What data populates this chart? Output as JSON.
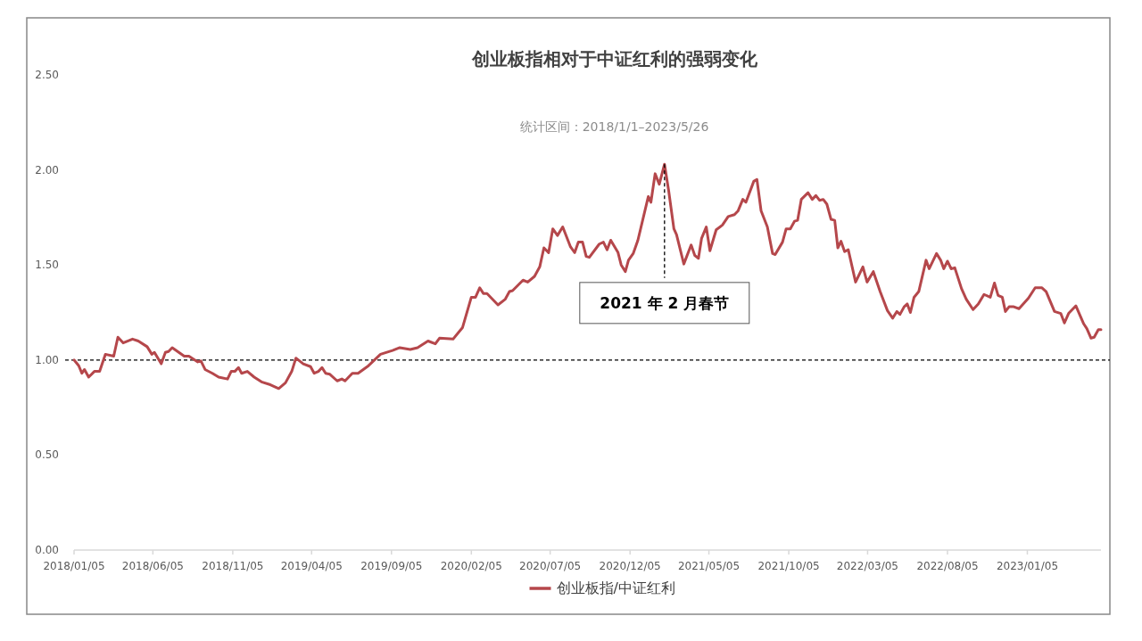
{
  "chart_data": {
    "type": "line",
    "title": "创业板指相对于中证红利的强弱变化",
    "subtitle": "统计区间：2018/1/1–2023/5/26",
    "x": [
      "2018-01-05",
      "2018-01-14",
      "2018-01-20",
      "2018-01-25",
      "2018-02-02",
      "2018-02-13",
      "2018-02-23",
      "2018-03-06",
      "2018-03-22",
      "2018-03-30",
      "2018-04-09",
      "2018-04-27",
      "2018-05-08",
      "2018-05-25",
      "2018-06-03",
      "2018-06-08",
      "2018-06-21",
      "2018-06-29",
      "2018-07-05",
      "2018-07-12",
      "2018-08-04",
      "2018-08-13",
      "2018-08-30",
      "2018-09-05",
      "2018-09-13",
      "2018-09-27",
      "2018-10-09",
      "2018-10-26",
      "2018-11-02",
      "2018-11-09",
      "2018-11-16",
      "2018-11-22",
      "2018-12-03",
      "2018-12-16",
      "2018-12-30",
      "2019-01-16",
      "2019-02-01",
      "2019-02-14",
      "2019-02-26",
      "2019-03-06",
      "2019-03-20",
      "2019-04-03",
      "2019-04-10",
      "2019-04-18",
      "2019-04-25",
      "2019-05-02",
      "2019-05-10",
      "2019-05-24",
      "2019-06-02",
      "2019-06-08",
      "2019-06-22",
      "2019-07-03",
      "2019-07-23",
      "2019-08-15",
      "2019-09-07",
      "2019-09-21",
      "2019-10-11",
      "2019-10-25",
      "2019-11-14",
      "2019-11-28",
      "2019-12-06",
      "2020-01-01",
      "2020-01-19",
      "2020-02-05",
      "2020-02-13",
      "2020-02-21",
      "2020-02-28",
      "2020-03-06",
      "2020-03-27",
      "2020-04-10",
      "2020-04-18",
      "2020-04-24",
      "2020-05-14",
      "2020-05-23",
      "2020-06-05",
      "2020-06-15",
      "2020-06-23",
      "2020-07-02",
      "2020-07-10",
      "2020-07-19",
      "2020-07-29",
      "2020-08-13",
      "2020-08-21",
      "2020-08-28",
      "2020-09-05",
      "2020-09-12",
      "2020-09-18",
      "2020-10-07",
      "2020-10-15",
      "2020-10-22",
      "2020-10-29",
      "2020-11-12",
      "2020-11-18",
      "2020-11-26",
      "2020-12-02",
      "2020-12-11",
      "2020-12-20",
      "2021-01-09",
      "2021-01-14",
      "2021-01-22",
      "2021-01-30",
      "2021-02-09",
      "2021-02-17",
      "2021-02-27",
      "2021-03-04",
      "2021-03-18",
      "2021-04-01",
      "2021-04-08",
      "2021-04-15",
      "2021-04-21",
      "2021-04-30",
      "2021-05-07",
      "2021-05-19",
      "2021-05-31",
      "2021-06-11",
      "2021-06-23",
      "2021-06-30",
      "2021-07-09",
      "2021-07-15",
      "2021-07-30",
      "2021-08-05",
      "2021-08-13",
      "2021-08-25",
      "2021-09-04",
      "2021-09-09",
      "2021-09-23",
      "2021-09-30",
      "2021-10-08",
      "2021-10-16",
      "2021-10-22",
      "2021-10-29",
      "2021-11-11",
      "2021-11-19",
      "2021-11-26",
      "2021-12-03",
      "2021-12-10",
      "2021-12-17",
      "2021-12-25",
      "2022-01-01",
      "2022-01-07",
      "2022-01-13",
      "2022-01-20",
      "2022-01-27",
      "2022-02-10",
      "2022-02-24",
      "2022-03-04",
      "2022-03-16",
      "2022-03-29",
      "2022-04-12",
      "2022-04-22",
      "2022-04-30",
      "2022-05-06",
      "2022-05-14",
      "2022-05-20",
      "2022-05-26",
      "2022-06-02",
      "2022-06-11",
      "2022-06-25",
      "2022-07-01",
      "2022-07-15",
      "2022-07-23",
      "2022-07-29",
      "2022-08-05",
      "2022-08-12",
      "2022-08-19",
      "2022-09-01",
      "2022-09-10",
      "2022-09-23",
      "2022-10-03",
      "2022-10-14",
      "2022-10-26",
      "2022-11-03",
      "2022-11-10",
      "2022-11-18",
      "2022-11-24",
      "2022-12-01",
      "2022-12-10",
      "2022-12-20",
      "2023-01-07",
      "2023-01-20",
      "2023-02-02",
      "2023-02-10",
      "2023-02-26",
      "2023-03-10",
      "2023-03-17",
      "2023-03-25",
      "2023-04-08",
      "2023-04-23",
      "2023-04-29",
      "2023-05-07",
      "2023-05-13",
      "2023-05-21",
      "2023-05-26"
    ],
    "series": [
      {
        "name": "创业板指/中证红利",
        "color": "#b5474b",
        "values": [
          1.0,
          0.97,
          0.93,
          0.95,
          0.91,
          0.94,
          0.94,
          1.03,
          1.02,
          1.12,
          1.09,
          1.11,
          1.1,
          1.07,
          1.03,
          1.04,
          0.98,
          1.04,
          1.045,
          1.065,
          1.02,
          1.02,
          0.99,
          0.995,
          0.95,
          0.93,
          0.91,
          0.9,
          0.94,
          0.94,
          0.96,
          0.93,
          0.94,
          0.91,
          0.885,
          0.87,
          0.85,
          0.88,
          0.94,
          1.01,
          0.98,
          0.965,
          0.93,
          0.94,
          0.96,
          0.93,
          0.925,
          0.89,
          0.9,
          0.89,
          0.93,
          0.93,
          0.97,
          1.03,
          1.05,
          1.065,
          1.055,
          1.065,
          1.1,
          1.085,
          1.115,
          1.11,
          1.17,
          1.33,
          1.33,
          1.38,
          1.35,
          1.35,
          1.29,
          1.32,
          1.36,
          1.365,
          1.42,
          1.41,
          1.44,
          1.49,
          1.59,
          1.565,
          1.69,
          1.655,
          1.7,
          1.595,
          1.565,
          1.62,
          1.62,
          1.545,
          1.54,
          1.61,
          1.62,
          1.58,
          1.63,
          1.565,
          1.5,
          1.465,
          1.525,
          1.56,
          1.63,
          1.86,
          1.83,
          1.98,
          1.925,
          2.03,
          1.89,
          1.69,
          1.66,
          1.505,
          1.605,
          1.55,
          1.535,
          1.64,
          1.7,
          1.575,
          1.685,
          1.71,
          1.755,
          1.765,
          1.785,
          1.845,
          1.83,
          1.94,
          1.95,
          1.785,
          1.7,
          1.56,
          1.555,
          1.62,
          1.69,
          1.69,
          1.73,
          1.735,
          1.845,
          1.88,
          1.845,
          1.865,
          1.84,
          1.845,
          1.82,
          1.74,
          1.735,
          1.59,
          1.625,
          1.57,
          1.58,
          1.41,
          1.49,
          1.41,
          1.465,
          1.36,
          1.26,
          1.22,
          1.255,
          1.24,
          1.28,
          1.295,
          1.25,
          1.33,
          1.36,
          1.525,
          1.48,
          1.56,
          1.525,
          1.48,
          1.52,
          1.48,
          1.485,
          1.375,
          1.32,
          1.265,
          1.295,
          1.345,
          1.33,
          1.405,
          1.34,
          1.33,
          1.255,
          1.28,
          1.28,
          1.27,
          1.325,
          1.38,
          1.38,
          1.36,
          1.255,
          1.245,
          1.195,
          1.245,
          1.285,
          1.19,
          1.165,
          1.115,
          1.12,
          1.16,
          1.16
        ]
      }
    ],
    "xlim": [
      "2018-01-05",
      "2023-05-26"
    ],
    "xticks": [
      {
        "value": "2018-01-05",
        "label": "2018/01/05"
      },
      {
        "value": "2018-06-05",
        "label": "2018/06/05"
      },
      {
        "value": "2018-11-05",
        "label": "2018/11/05"
      },
      {
        "value": "2019-04-05",
        "label": "2019/04/05"
      },
      {
        "value": "2019-09-05",
        "label": "2019/09/05"
      },
      {
        "value": "2020-02-05",
        "label": "2020/02/05"
      },
      {
        "value": "2020-07-05",
        "label": "2020/07/05"
      },
      {
        "value": "2020-12-05",
        "label": "2020/12/05"
      },
      {
        "value": "2021-05-05",
        "label": "2021/05/05"
      },
      {
        "value": "2021-10-05",
        "label": "2021/10/05"
      },
      {
        "value": "2022-03-05",
        "label": "2022/03/05"
      },
      {
        "value": "2022-08-05",
        "label": "2022/08/05"
      },
      {
        "value": "2023-01-05",
        "label": "2023/01/05"
      }
    ],
    "ylim": [
      0,
      2.5
    ],
    "yticks": [
      {
        "value": 0,
        "label": "0.00"
      },
      {
        "value": 0.5,
        "label": "0.50"
      },
      {
        "value": 1,
        "label": "1.00"
      },
      {
        "value": 1.5,
        "label": "1.50"
      },
      {
        "value": 2,
        "label": "2.00"
      },
      {
        "value": 2.5,
        "label": "2.50"
      }
    ],
    "ref_lines": [
      {
        "axis": "y",
        "value": 1,
        "color": "#000000",
        "line_style": "dashed"
      }
    ],
    "annotations": [
      {
        "text": "2021 年 2 月春节",
        "x": "2021-02-09",
        "y": 2.03
      }
    ],
    "legend": "bottom"
  }
}
